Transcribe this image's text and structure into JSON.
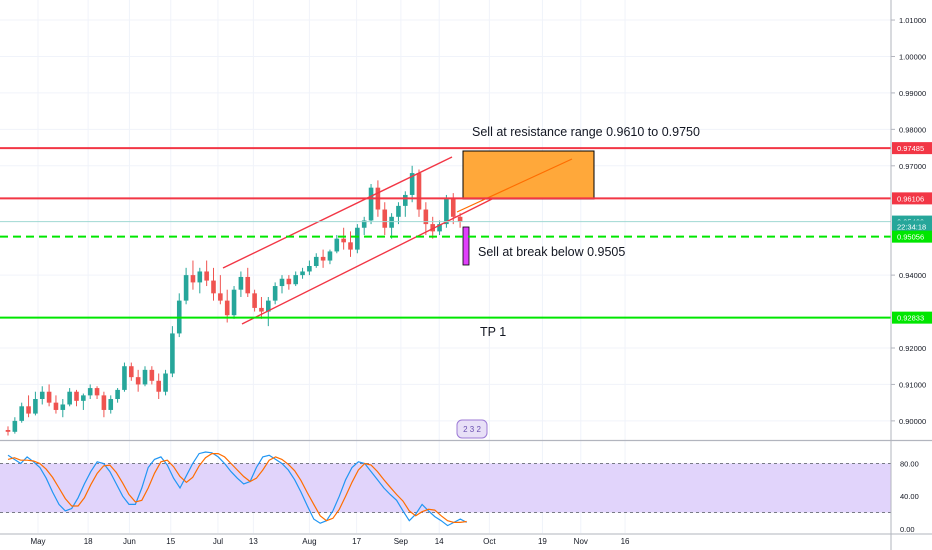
{
  "price_axis": {
    "ticks": [
      {
        "value": 1.01,
        "label": "1.01000"
      },
      {
        "value": 1.0,
        "label": "1.00000"
      },
      {
        "value": 0.99,
        "label": "0.99000"
      },
      {
        "value": 0.98,
        "label": "0.98000"
      },
      {
        "value": 0.97,
        "label": "0.97000"
      },
      {
        "value": 0.94,
        "label": "0.94000"
      },
      {
        "value": 0.92,
        "label": "0.92000"
      },
      {
        "value": 0.91,
        "label": "0.91000"
      },
      {
        "value": 0.9,
        "label": "0.90000"
      }
    ]
  },
  "price_tags": [
    {
      "value": 0.97485,
      "label": "0.97485",
      "color": "#f23645"
    },
    {
      "value": 0.96106,
      "label": "0.96106",
      "color": "#f23645"
    },
    {
      "value": 0.95469,
      "label": "0.95469",
      "color": "#26a69a"
    },
    {
      "value": 0.95338,
      "label": "22:34:18",
      "color": "#26a69a"
    },
    {
      "value": 0.95056,
      "label": "0.95056",
      "color": "#00e600"
    },
    {
      "value": 0.92833,
      "label": "0.92833",
      "color": "#00e600"
    }
  ],
  "annotations": {
    "sell_resistance": "Sell at resistance range 0.9610 to 0.9750",
    "sell_break": "Sell at break below 0.9505",
    "tp1": "TP 1"
  },
  "oscillator_axis": {
    "ticks": [
      {
        "value": 80,
        "label": "80.00"
      },
      {
        "value": 40,
        "label": "40.00"
      },
      {
        "value": 0,
        "label": "0.00"
      }
    ],
    "band": [
      20,
      80
    ]
  },
  "time_axis": {
    "ticks": [
      {
        "label": "May",
        "day": 0
      },
      {
        "label": "18",
        "day": 17
      },
      {
        "label": "Jun",
        "day": 31
      },
      {
        "label": "15",
        "day": 45
      },
      {
        "label": "Jul",
        "day": 61
      },
      {
        "label": "13",
        "day": 73
      },
      {
        "label": "Aug",
        "day": 92
      },
      {
        "label": "17",
        "day": 108
      },
      {
        "label": "Sep",
        "day": 123
      },
      {
        "label": "14",
        "day": 136
      },
      {
        "label": "Oct",
        "day": 153
      },
      {
        "label": "19",
        "day": 171
      },
      {
        "label": "Nov",
        "day": 184
      },
      {
        "label": "16",
        "day": 199
      }
    ]
  },
  "logo": {
    "label": "2 3 2"
  },
  "colors": {
    "up": "#26a69a",
    "down": "#ef5350",
    "resistance": "#f23645",
    "support": "#00e600",
    "zone_fill": "#ffa83a",
    "sell_marker": "#e040fb",
    "osc_k": "#2196f3",
    "osc_d": "#ff6d00",
    "osc_band": "#e1d4fb"
  },
  "chart_data": [
    {
      "type": "candlestick",
      "x_unit": "trading days from May start",
      "y_unit": "price",
      "ylim": [
        0.8953,
        1.0155
      ],
      "candles": [
        [
          0,
          0.8975,
          0.8985,
          0.896,
          0.897
        ],
        [
          1,
          0.897,
          0.901,
          0.8965,
          0.9
        ],
        [
          2,
          0.9,
          0.905,
          0.8995,
          0.904
        ],
        [
          3,
          0.904,
          0.907,
          0.901,
          0.902
        ],
        [
          4,
          0.902,
          0.908,
          0.9015,
          0.906
        ],
        [
          5,
          0.906,
          0.9095,
          0.9045,
          0.908
        ],
        [
          6,
          0.908,
          0.91,
          0.904,
          0.905
        ],
        [
          7,
          0.905,
          0.907,
          0.902,
          0.903
        ],
        [
          8,
          0.903,
          0.906,
          0.901,
          0.9045
        ],
        [
          9,
          0.9045,
          0.909,
          0.904,
          0.908
        ],
        [
          10,
          0.908,
          0.9085,
          0.904,
          0.9055
        ],
        [
          11,
          0.9055,
          0.9075,
          0.903,
          0.907
        ],
        [
          12,
          0.907,
          0.91,
          0.906,
          0.909
        ],
        [
          13,
          0.909,
          0.9095,
          0.906,
          0.907
        ],
        [
          14,
          0.907,
          0.908,
          0.901,
          0.903
        ],
        [
          15,
          0.903,
          0.907,
          0.902,
          0.906
        ],
        [
          16,
          0.906,
          0.909,
          0.905,
          0.9085
        ],
        [
          17,
          0.9085,
          0.916,
          0.908,
          0.915
        ],
        [
          18,
          0.915,
          0.916,
          0.911,
          0.912
        ],
        [
          19,
          0.912,
          0.914,
          0.908,
          0.91
        ],
        [
          20,
          0.91,
          0.915,
          0.9095,
          0.914
        ],
        [
          21,
          0.914,
          0.915,
          0.91,
          0.911
        ],
        [
          22,
          0.911,
          0.913,
          0.906,
          0.908
        ],
        [
          23,
          0.908,
          0.914,
          0.907,
          0.913
        ],
        [
          24,
          0.913,
          0.926,
          0.912,
          0.924
        ],
        [
          25,
          0.924,
          0.935,
          0.923,
          0.933
        ],
        [
          26,
          0.933,
          0.942,
          0.932,
          0.94
        ],
        [
          27,
          0.94,
          0.944,
          0.936,
          0.938
        ],
        [
          28,
          0.938,
          0.942,
          0.935,
          0.941
        ],
        [
          29,
          0.941,
          0.944,
          0.937,
          0.9385
        ],
        [
          30,
          0.9385,
          0.942,
          0.933,
          0.935
        ],
        [
          31,
          0.935,
          0.94,
          0.932,
          0.933
        ],
        [
          32,
          0.933,
          0.936,
          0.927,
          0.929
        ],
        [
          33,
          0.929,
          0.937,
          0.928,
          0.936
        ],
        [
          34,
          0.936,
          0.941,
          0.934,
          0.9395
        ],
        [
          35,
          0.9395,
          0.942,
          0.934,
          0.935
        ],
        [
          36,
          0.935,
          0.936,
          0.93,
          0.931
        ],
        [
          37,
          0.931,
          0.934,
          0.928,
          0.93
        ],
        [
          38,
          0.93,
          0.934,
          0.926,
          0.933
        ],
        [
          39,
          0.933,
          0.938,
          0.932,
          0.937
        ],
        [
          40,
          0.937,
          0.94,
          0.935,
          0.939
        ],
        [
          41,
          0.939,
          0.94,
          0.936,
          0.9375
        ],
        [
          42,
          0.9375,
          0.941,
          0.937,
          0.94
        ],
        [
          43,
          0.94,
          0.942,
          0.939,
          0.941
        ],
        [
          44,
          0.941,
          0.944,
          0.94,
          0.9425
        ],
        [
          45,
          0.9425,
          0.946,
          0.942,
          0.945
        ],
        [
          46,
          0.945,
          0.947,
          0.942,
          0.944
        ],
        [
          47,
          0.944,
          0.947,
          0.943,
          0.9465
        ],
        [
          48,
          0.9465,
          0.951,
          0.946,
          0.95
        ],
        [
          49,
          0.95,
          0.953,
          0.947,
          0.949
        ],
        [
          50,
          0.949,
          0.952,
          0.945,
          0.947
        ],
        [
          51,
          0.947,
          0.954,
          0.946,
          0.953
        ],
        [
          52,
          0.953,
          0.956,
          0.951,
          0.955
        ],
        [
          53,
          0.955,
          0.965,
          0.954,
          0.964
        ],
        [
          54,
          0.964,
          0.966,
          0.956,
          0.958
        ],
        [
          55,
          0.958,
          0.96,
          0.951,
          0.953
        ],
        [
          56,
          0.953,
          0.957,
          0.95,
          0.956
        ],
        [
          57,
          0.956,
          0.96,
          0.954,
          0.959
        ],
        [
          58,
          0.959,
          0.963,
          0.956,
          0.962
        ],
        [
          59,
          0.962,
          0.97,
          0.96,
          0.968
        ],
        [
          60,
          0.968,
          0.969,
          0.956,
          0.958
        ],
        [
          61,
          0.958,
          0.96,
          0.951,
          0.954
        ],
        [
          62,
          0.954,
          0.956,
          0.95,
          0.952
        ],
        [
          63,
          0.952,
          0.955,
          0.951,
          0.954
        ],
        [
          64,
          0.954,
          0.962,
          0.953,
          0.961
        ],
        [
          65,
          0.961,
          0.9625,
          0.954,
          0.956
        ],
        [
          66,
          0.956,
          0.957,
          0.953,
          0.9547
        ]
      ]
    },
    {
      "type": "line",
      "title": "",
      "ylim": [
        -5,
        105
      ],
      "series": [
        {
          "values": [
            90,
            85,
            80,
            88,
            82,
            75,
            62,
            45,
            30,
            22,
            25,
            38,
            55,
            70,
            82,
            80,
            70,
            55,
            40,
            30,
            30,
            50,
            75,
            85,
            88,
            78,
            62,
            50,
            65,
            80,
            92,
            94,
            93,
            88,
            80,
            70,
            62,
            55,
            58,
            75,
            88,
            90,
            85,
            80,
            72,
            60,
            45,
            28,
            12,
            7,
            10,
            22,
            40,
            60,
            75,
            82,
            80,
            70,
            60,
            50,
            42,
            35,
            22,
            10,
            18,
            30,
            22,
            15,
            10,
            4,
            8,
            12,
            8
          ]
        },
        {
          "values": [
            85,
            87,
            84,
            84,
            83,
            80,
            73,
            63,
            50,
            37,
            28,
            28,
            38,
            54,
            68,
            77,
            78,
            69,
            56,
            42,
            33,
            35,
            50,
            68,
            82,
            84,
            76,
            64,
            57,
            63,
            77,
            87,
            92,
            92,
            88,
            80,
            72,
            64,
            58,
            62,
            72,
            84,
            88,
            85,
            79,
            71,
            59,
            44,
            30,
            16,
            10,
            13,
            24,
            40,
            57,
            72,
            80,
            78,
            70,
            60,
            51,
            42,
            34,
            22,
            16,
            21,
            24,
            23,
            16,
            10,
            8,
            8,
            9
          ]
        }
      ]
    }
  ]
}
